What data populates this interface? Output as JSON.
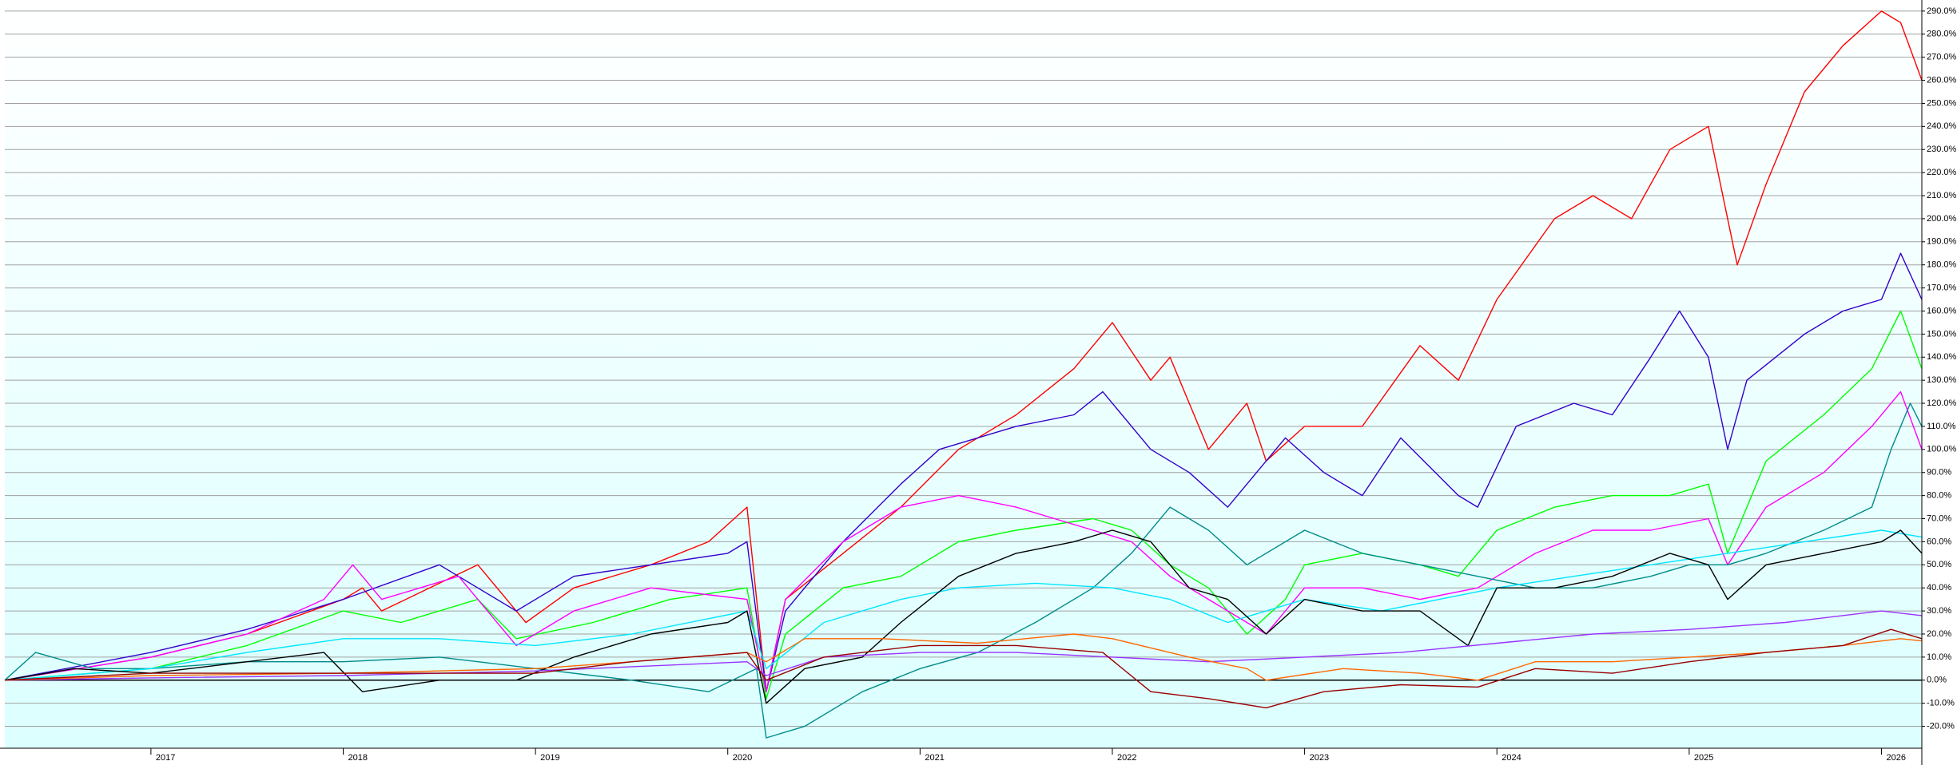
{
  "chart_data": {
    "type": "line",
    "xlim": [
      2016.24,
      2026.21
    ],
    "ylim": [
      -29.5,
      294.8
    ],
    "xticks": [
      2017,
      2018,
      2019,
      2020,
      2021,
      2022,
      2023,
      2024,
      2025,
      2026
    ],
    "yticks": [
      {
        "value": -20,
        "label": "-20.0%"
      },
      {
        "value": -10,
        "label": "-10.0%"
      },
      {
        "value": 0,
        "label": "0.0%"
      },
      {
        "value": 10,
        "label": "10.0%"
      },
      {
        "value": 20,
        "label": "20.0%"
      },
      {
        "value": 30,
        "label": "30.0%"
      },
      {
        "value": 40,
        "label": "40.0%"
      },
      {
        "value": 50,
        "label": "50.0%"
      },
      {
        "value": 60,
        "label": "60.0%"
      },
      {
        "value": 70,
        "label": "70.0%"
      },
      {
        "value": 80,
        "label": "80.0%"
      },
      {
        "value": 90,
        "label": "90.0%"
      },
      {
        "value": 100,
        "label": "100.0%"
      },
      {
        "value": 110,
        "label": "110.0%"
      },
      {
        "value": 120,
        "label": "120.0%"
      },
      {
        "value": 130,
        "label": "130.0%"
      },
      {
        "value": 140,
        "label": "140.0%"
      },
      {
        "value": 150,
        "label": "150.0%"
      },
      {
        "value": 160,
        "label": "160.0%"
      },
      {
        "value": 170,
        "label": "170.0%"
      },
      {
        "value": 180,
        "label": "180.0%"
      },
      {
        "value": 190,
        "label": "190.0%"
      },
      {
        "value": 200,
        "label": "200.0%"
      },
      {
        "value": 210,
        "label": "210.0%"
      },
      {
        "value": 220,
        "label": "220.0%"
      },
      {
        "value": 230,
        "label": "230.0%"
      },
      {
        "value": 240,
        "label": "240.0%"
      },
      {
        "value": 250,
        "label": "250.0%"
      },
      {
        "value": 260,
        "label": "260.0%"
      },
      {
        "value": 270,
        "label": "270.0%"
      },
      {
        "value": 280,
        "label": "280.0%"
      },
      {
        "value": 290,
        "label": "290.0%"
      }
    ],
    "grid": true,
    "zero_line": true,
    "series": [
      {
        "color": "#ff0000",
        "x": [
          2016.24,
          2017,
          2017.5,
          2018,
          2018.1,
          2018.2,
          2018.7,
          2018.95,
          2019.2,
          2019.6,
          2019.9,
          2020.1,
          2020.2,
          2020.3,
          2020.6,
          2020.9,
          2021.2,
          2021.5,
          2021.8,
          2021.95,
          2022,
          2022.2,
          2022.3,
          2022.5,
          2022.7,
          2022.8,
          2023,
          2023.3,
          2023.6,
          2023.8,
          2024,
          2024.3,
          2024.5,
          2024.7,
          2024.9,
          2025.1,
          2025.25,
          2025.4,
          2025.6,
          2025.8,
          2026,
          2026.1,
          2026.21
        ],
        "values": [
          0,
          10,
          20,
          35,
          40,
          30,
          50,
          25,
          40,
          50,
          60,
          75,
          -5,
          35,
          55,
          75,
          100,
          115,
          135,
          150,
          155,
          130,
          140,
          100,
          120,
          95,
          110,
          110,
          145,
          130,
          165,
          200,
          210,
          200,
          230,
          240,
          180,
          215,
          255,
          275,
          290,
          285,
          260
        ]
      },
      {
        "color": "#3300cc",
        "x": [
          2016.24,
          2017,
          2017.5,
          2018,
          2018.5,
          2018.9,
          2019.2,
          2019.6,
          2020,
          2020.1,
          2020.2,
          2020.3,
          2020.6,
          2020.9,
          2021.1,
          2021.5,
          2021.8,
          2021.95,
          2022.2,
          2022.4,
          2022.6,
          2022.9,
          2023.1,
          2023.3,
          2023.5,
          2023.8,
          2023.9,
          2024.1,
          2024.4,
          2024.6,
          2024.8,
          2024.95,
          2025.1,
          2025.2,
          2025.3,
          2025.6,
          2025.8,
          2026,
          2026.1,
          2026.21
        ],
        "values": [
          0,
          12,
          22,
          35,
          50,
          30,
          45,
          50,
          55,
          60,
          -5,
          30,
          60,
          85,
          100,
          110,
          115,
          125,
          100,
          90,
          75,
          105,
          90,
          80,
          105,
          80,
          75,
          110,
          120,
          115,
          140,
          160,
          140,
          100,
          130,
          150,
          160,
          165,
          185,
          165
        ]
      },
      {
        "color": "#00ff00",
        "x": [
          2016.24,
          2017,
          2017.5,
          2018,
          2018.3,
          2018.7,
          2018.9,
          2019.3,
          2019.7,
          2020.1,
          2020.2,
          2020.3,
          2020.6,
          2020.9,
          2021.2,
          2021.5,
          2021.9,
          2022.1,
          2022.3,
          2022.5,
          2022.7,
          2022.9,
          2023,
          2023.3,
          2023.6,
          2023.8,
          2024,
          2024.3,
          2024.6,
          2024.9,
          2025.1,
          2025.2,
          2025.4,
          2025.7,
          2025.95,
          2026.1,
          2026.21
        ],
        "values": [
          0,
          5,
          15,
          30,
          25,
          35,
          18,
          25,
          35,
          40,
          -8,
          20,
          40,
          45,
          60,
          65,
          70,
          65,
          50,
          40,
          20,
          35,
          50,
          55,
          50,
          45,
          65,
          75,
          80,
          80,
          85,
          55,
          95,
          115,
          135,
          160,
          135
        ]
      },
      {
        "color": "#ff00ff",
        "x": [
          2016.24,
          2017,
          2017.5,
          2017.9,
          2018.05,
          2018.2,
          2018.6,
          2018.9,
          2019.2,
          2019.6,
          2020.1,
          2020.2,
          2020.3,
          2020.6,
          2020.9,
          2021.2,
          2021.5,
          2021.9,
          2022.1,
          2022.3,
          2022.6,
          2022.8,
          2023,
          2023.3,
          2023.6,
          2023.9,
          2024.2,
          2024.5,
          2024.8,
          2025.1,
          2025.2,
          2025.4,
          2025.7,
          2025.95,
          2026.1,
          2026.21
        ],
        "values": [
          0,
          10,
          20,
          35,
          50,
          35,
          45,
          15,
          30,
          40,
          35,
          -5,
          35,
          60,
          75,
          80,
          75,
          65,
          60,
          45,
          30,
          20,
          40,
          40,
          35,
          40,
          55,
          65,
          65,
          70,
          50,
          75,
          90,
          110,
          125,
          100
        ]
      },
      {
        "color": "#008b8b",
        "x": [
          2016.24,
          2016.4,
          2016.7,
          2017,
          2017.5,
          2018,
          2018.5,
          2019,
          2019.5,
          2019.9,
          2020.15,
          2020.2,
          2020.4,
          2020.7,
          2021,
          2021.3,
          2021.6,
          2021.9,
          2022.1,
          2022.3,
          2022.5,
          2022.7,
          2023,
          2023.3,
          2023.6,
          2023.9,
          2024.2,
          2024.5,
          2024.8,
          2025,
          2025.2,
          2025.4,
          2025.7,
          2025.95,
          2026.05,
          2026.15,
          2026.21
        ],
        "values": [
          0,
          12,
          5,
          5,
          8,
          8,
          10,
          5,
          0,
          -5,
          5,
          -25,
          -20,
          -5,
          5,
          12,
          25,
          40,
          55,
          75,
          65,
          50,
          65,
          55,
          50,
          45,
          40,
          40,
          45,
          50,
          50,
          55,
          65,
          75,
          100,
          120,
          110
        ]
      },
      {
        "color": "#00e5ff",
        "x": [
          2016.24,
          2017,
          2017.5,
          2018,
          2018.5,
          2019,
          2019.5,
          2020.1,
          2020.2,
          2020.5,
          2020.9,
          2021.2,
          2021.6,
          2022,
          2022.3,
          2022.6,
          2022.8,
          2023,
          2023.4,
          2023.7,
          2024,
          2024.4,
          2024.8,
          2025.2,
          2025.6,
          2026,
          2026.21
        ],
        "values": [
          0,
          5,
          12,
          18,
          18,
          15,
          20,
          30,
          5,
          25,
          35,
          40,
          42,
          40,
          35,
          25,
          30,
          35,
          30,
          35,
          40,
          45,
          50,
          55,
          60,
          65,
          62
        ]
      },
      {
        "color": "#000000",
        "x": [
          2016.24,
          2016.6,
          2017,
          2017.5,
          2017.9,
          2018.1,
          2018.5,
          2018.9,
          2019.2,
          2019.6,
          2020,
          2020.1,
          2020.2,
          2020.4,
          2020.7,
          2020.9,
          2021.2,
          2021.5,
          2021.8,
          2022,
          2022.2,
          2022.4,
          2022.6,
          2022.8,
          2023,
          2023.3,
          2023.6,
          2023.85,
          2024,
          2024.3,
          2024.6,
          2024.9,
          2025.1,
          2025.2,
          2025.4,
          2025.7,
          2026,
          2026.1,
          2026.21
        ],
        "values": [
          0,
          5,
          3,
          8,
          12,
          -5,
          0,
          0,
          10,
          20,
          25,
          30,
          -10,
          5,
          10,
          25,
          45,
          55,
          60,
          65,
          60,
          40,
          35,
          20,
          35,
          30,
          30,
          15,
          40,
          40,
          45,
          55,
          50,
          35,
          50,
          55,
          60,
          65,
          55
        ]
      },
      {
        "color": "#9933ff",
        "x": [
          2016.24,
          2017,
          2018,
          2019,
          2020.1,
          2020.2,
          2020.5,
          2021,
          2021.5,
          2022,
          2022.5,
          2023,
          2023.5,
          2024,
          2024.5,
          2025,
          2025.5,
          2026,
          2026.21
        ],
        "values": [
          0,
          1,
          2,
          4,
          8,
          2,
          10,
          12,
          12,
          10,
          8,
          10,
          12,
          16,
          20,
          22,
          25,
          30,
          28
        ]
      },
      {
        "color": "#ff6600",
        "x": [
          2016.24,
          2017,
          2018,
          2019,
          2019.5,
          2020.1,
          2020.2,
          2020.4,
          2020.8,
          2021.3,
          2021.8,
          2022,
          2022.4,
          2022.7,
          2022.8,
          2023.2,
          2023.6,
          2023.9,
          2024.2,
          2024.6,
          2025,
          2025.4,
          2025.8,
          2026.1,
          2026.21
        ],
        "values": [
          0,
          2,
          3,
          5,
          8,
          12,
          8,
          18,
          18,
          16,
          20,
          18,
          10,
          5,
          0,
          5,
          3,
          0,
          8,
          8,
          10,
          12,
          15,
          18,
          17
        ]
      },
      {
        "color": "#990000",
        "x": [
          2016.24,
          2017,
          2018,
          2019,
          2019.5,
          2020.1,
          2020.2,
          2020.5,
          2021,
          2021.5,
          2021.95,
          2022.2,
          2022.5,
          2022.8,
          2023.1,
          2023.5,
          2023.9,
          2024.2,
          2024.6,
          2025,
          2025.4,
          2025.8,
          2026.05,
          2026.21
        ],
        "values": [
          0,
          3,
          3,
          3,
          8,
          12,
          0,
          10,
          15,
          15,
          12,
          -5,
          -8,
          -12,
          -5,
          -2,
          -3,
          5,
          3,
          8,
          12,
          15,
          22,
          18
        ]
      }
    ]
  }
}
